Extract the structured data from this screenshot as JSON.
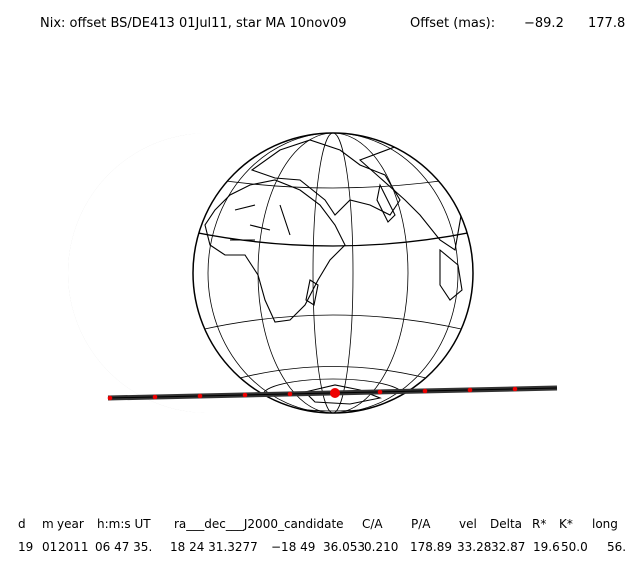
{
  "header": {
    "title": "Nix: offset BS/DE413 01Jul11, star MA 10nov09",
    "offset_label": "Offset (mas):",
    "offset_x": "−89.2",
    "offset_y": "177.8"
  },
  "table": {
    "headers": [
      "d",
      "m",
      "year",
      "h:m:s UT",
      "ra___dec___J2000_candidate",
      "C/A",
      "P/A",
      "vel",
      "Delta",
      "R*",
      "K*",
      "long"
    ],
    "rows": [
      [
        "19",
        "01",
        "2011",
        "06 47 35.",
        "18 24 31.3277",
        "−18 49  36.053",
        "0.210",
        "178.89",
        "33.28",
        "32.87",
        "19.6",
        "50.0",
        "56."
      ]
    ]
  }
}
